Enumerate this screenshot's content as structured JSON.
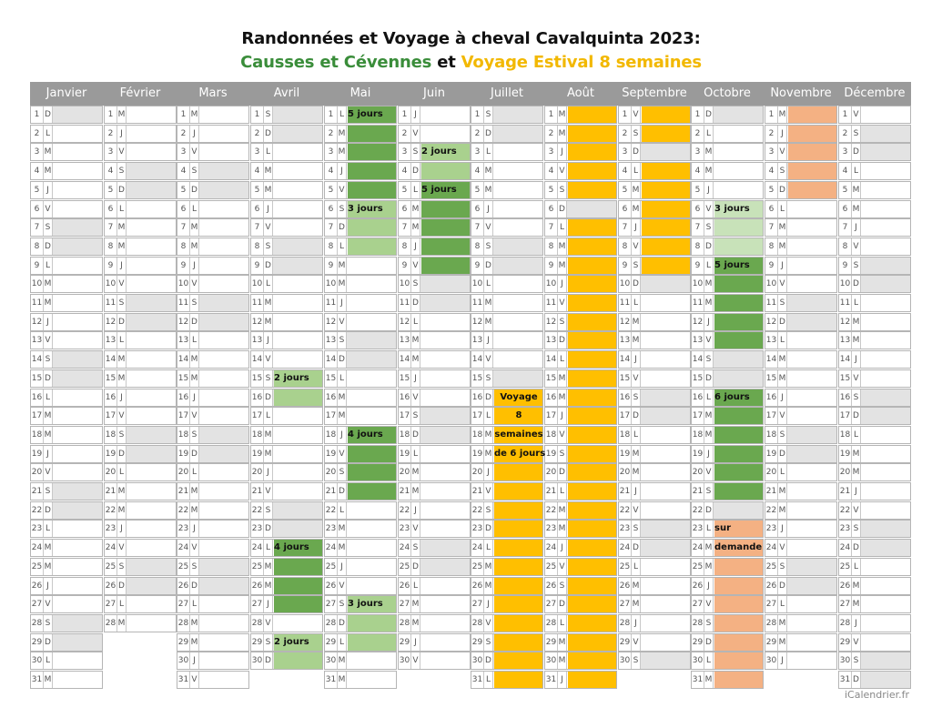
{
  "title_line1": "Randonnées et Voyage à cheval Cavalquinta 2023:",
  "title_line2": {
    "part1": "Causses et Cévennes",
    "part2": " et ",
    "part3": "Voyage Estival 8 semaines"
  },
  "colors": {
    "header": "#9a9a9a",
    "weekend": "#e3e3e3",
    "causses_dark": "#6aa84f",
    "causses_light": "#a9d18e",
    "voyage": "#ffbf00",
    "sur_demande": "#f4b183"
  },
  "months": [
    {
      "name": "Janvier",
      "days": [
        "D",
        "L",
        "M",
        "M",
        "J",
        "V",
        "S",
        "D",
        "L",
        "M",
        "M",
        "J",
        "V",
        "S",
        "D",
        "L",
        "M",
        "M",
        "J",
        "V",
        "S",
        "D",
        "L",
        "M",
        "M",
        "J",
        "V",
        "S",
        "D",
        "L",
        "M"
      ]
    },
    {
      "name": "Février",
      "days": [
        "M",
        "J",
        "V",
        "S",
        "D",
        "L",
        "M",
        "M",
        "J",
        "V",
        "S",
        "D",
        "L",
        "M",
        "M",
        "J",
        "V",
        "S",
        "D",
        "L",
        "M",
        "M",
        "J",
        "V",
        "S",
        "D",
        "L",
        "M"
      ]
    },
    {
      "name": "Mars",
      "days": [
        "M",
        "J",
        "V",
        "S",
        "D",
        "L",
        "M",
        "M",
        "J",
        "V",
        "S",
        "D",
        "L",
        "M",
        "M",
        "J",
        "V",
        "S",
        "D",
        "L",
        "M",
        "M",
        "J",
        "V",
        "S",
        "D",
        "L",
        "M",
        "M",
        "J",
        "V"
      ]
    },
    {
      "name": "Avril",
      "days": [
        "S",
        "D",
        "L",
        "M",
        "M",
        "J",
        "V",
        "S",
        "D",
        "L",
        "M",
        "M",
        "J",
        "V",
        "S",
        "D",
        "L",
        "M",
        "M",
        "J",
        "V",
        "S",
        "D",
        "L",
        "M",
        "M",
        "J",
        "V",
        "S",
        "D"
      ]
    },
    {
      "name": "Mai",
      "days": [
        "L",
        "M",
        "M",
        "J",
        "V",
        "S",
        "D",
        "L",
        "M",
        "M",
        "J",
        "V",
        "S",
        "D",
        "L",
        "M",
        "M",
        "J",
        "V",
        "S",
        "D",
        "L",
        "M",
        "M",
        "J",
        "V",
        "S",
        "D",
        "L",
        "M",
        "M"
      ]
    },
    {
      "name": "Juin",
      "days": [
        "J",
        "V",
        "S",
        "D",
        "L",
        "M",
        "M",
        "J",
        "V",
        "S",
        "D",
        "L",
        "M",
        "M",
        "J",
        "V",
        "S",
        "D",
        "L",
        "M",
        "M",
        "J",
        "V",
        "S",
        "D",
        "L",
        "M",
        "M",
        "J",
        "V"
      ]
    },
    {
      "name": "Juillet",
      "days": [
        "S",
        "D",
        "L",
        "M",
        "M",
        "J",
        "V",
        "S",
        "D",
        "L",
        "M",
        "M",
        "J",
        "V",
        "S",
        "D",
        "L",
        "M",
        "M",
        "J",
        "V",
        "S",
        "D",
        "L",
        "M",
        "M",
        "J",
        "V",
        "S",
        "D",
        "L"
      ]
    },
    {
      "name": "Août",
      "days": [
        "M",
        "M",
        "J",
        "V",
        "S",
        "D",
        "L",
        "M",
        "M",
        "J",
        "V",
        "S",
        "D",
        "L",
        "M",
        "M",
        "J",
        "V",
        "S",
        "D",
        "L",
        "M",
        "M",
        "J",
        "V",
        "S",
        "D",
        "L",
        "M",
        "M",
        "J"
      ]
    },
    {
      "name": "Septembre",
      "days": [
        "V",
        "S",
        "D",
        "L",
        "M",
        "M",
        "J",
        "V",
        "S",
        "D",
        "L",
        "M",
        "M",
        "J",
        "V",
        "S",
        "D",
        "L",
        "M",
        "M",
        "J",
        "V",
        "S",
        "D",
        "L",
        "M",
        "M",
        "J",
        "V",
        "S"
      ]
    },
    {
      "name": "Octobre",
      "days": [
        "D",
        "L",
        "M",
        "M",
        "J",
        "V",
        "S",
        "D",
        "L",
        "M",
        "M",
        "J",
        "V",
        "S",
        "D",
        "L",
        "M",
        "M",
        "J",
        "V",
        "S",
        "D",
        "L",
        "M",
        "M",
        "J",
        "V",
        "S",
        "D",
        "L",
        "M"
      ]
    },
    {
      "name": "Novembre",
      "days": [
        "M",
        "J",
        "V",
        "S",
        "D",
        "L",
        "M",
        "M",
        "J",
        "V",
        "S",
        "D",
        "L",
        "M",
        "M",
        "J",
        "V",
        "S",
        "D",
        "L",
        "M",
        "M",
        "J",
        "V",
        "S",
        "D",
        "L",
        "M",
        "M",
        "J"
      ]
    },
    {
      "name": "Décembre",
      "days": [
        "V",
        "S",
        "D",
        "L",
        "M",
        "M",
        "J",
        "V",
        "S",
        "D",
        "L",
        "M",
        "M",
        "J",
        "V",
        "S",
        "D",
        "L",
        "M",
        "M",
        "J",
        "V",
        "S",
        "D",
        "L",
        "M",
        "M",
        "J",
        "V",
        "S",
        "D"
      ]
    }
  ],
  "events": [
    {
      "month": 3,
      "start": 15,
      "end": 16,
      "color": "light"
    },
    {
      "month": 3,
      "start": 24,
      "end": 27,
      "color": "dark"
    },
    {
      "month": 3,
      "start": 29,
      "end": 30,
      "color": "light"
    },
    {
      "month": 4,
      "start": 1,
      "end": 5,
      "color": "dark"
    },
    {
      "month": 4,
      "start": 6,
      "end": 8,
      "color": "light"
    },
    {
      "month": 4,
      "start": 18,
      "end": 21,
      "color": "dark"
    },
    {
      "month": 4,
      "start": 27,
      "end": 29,
      "color": "light"
    },
    {
      "month": 5,
      "start": 3,
      "end": 4,
      "color": "light"
    },
    {
      "month": 5,
      "start": 5,
      "end": 9,
      "color": "dark"
    },
    {
      "month": 6,
      "start": 16,
      "end": 31,
      "color": "orange"
    },
    {
      "month": 7,
      "start": 1,
      "end": 5,
      "color": "orange"
    },
    {
      "month": 7,
      "start": 7,
      "end": 31,
      "color": "orange"
    },
    {
      "month": 8,
      "start": 1,
      "end": 2,
      "color": "orange"
    },
    {
      "month": 8,
      "start": 4,
      "end": 9,
      "color": "orange"
    },
    {
      "month": 9,
      "start": 6,
      "end": 8,
      "color": "lighter"
    },
    {
      "month": 9,
      "start": 9,
      "end": 13,
      "color": "dark"
    },
    {
      "month": 9,
      "start": 16,
      "end": 21,
      "color": "dark"
    },
    {
      "month": 9,
      "start": 23,
      "end": 31,
      "color": "salmon"
    },
    {
      "month": 10,
      "start": 1,
      "end": 5,
      "color": "salmon"
    }
  ],
  "annotations": [
    {
      "month": 3,
      "day": 15,
      "text": "2 jours"
    },
    {
      "month": 3,
      "day": 24,
      "text": "4 jours"
    },
    {
      "month": 3,
      "day": 29,
      "text": "2 jours"
    },
    {
      "month": 4,
      "day": 1,
      "text": "5 jours"
    },
    {
      "month": 4,
      "day": 6,
      "text": "3 jours"
    },
    {
      "month": 4,
      "day": 18,
      "text": "4 jours"
    },
    {
      "month": 4,
      "day": 27,
      "text": "3 jours"
    },
    {
      "month": 5,
      "day": 3,
      "text": "2 jours"
    },
    {
      "month": 5,
      "day": 5,
      "text": "5 jours"
    },
    {
      "month": 6,
      "day": 16,
      "text": "Voyage",
      "center": true
    },
    {
      "month": 6,
      "day": 17,
      "text": "8",
      "center": true
    },
    {
      "month": 6,
      "day": 18,
      "text": "semaines",
      "center": true
    },
    {
      "month": 6,
      "day": 19,
      "text": "de 6 jours",
      "center": true
    },
    {
      "month": 9,
      "day": 6,
      "text": "3 jours"
    },
    {
      "month": 9,
      "day": 9,
      "text": "5 jours"
    },
    {
      "month": 9,
      "day": 16,
      "text": "6 jours"
    },
    {
      "month": 9,
      "day": 23,
      "text": "sur"
    },
    {
      "month": 9,
      "day": 24,
      "text": "demande"
    }
  ],
  "footer": "iCalendrier.fr"
}
